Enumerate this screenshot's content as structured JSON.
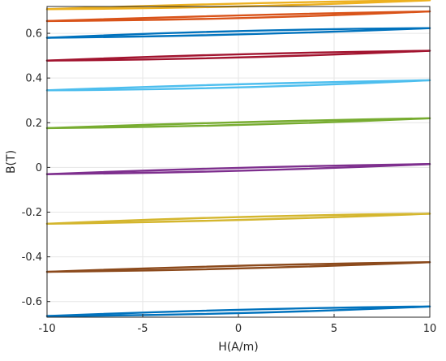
{
  "chart_data": {
    "type": "line",
    "title": "",
    "xlabel": "H(A/m)",
    "ylabel": "B(T)",
    "xlim": [
      -10,
      10
    ],
    "ylim": [
      -0.67,
      0.72
    ],
    "xticks": [
      -10,
      -5,
      0,
      5,
      10
    ],
    "xtick_labels": [
      "-10",
      "-5",
      "0",
      "5",
      "10"
    ],
    "yticks": [
      -0.6,
      -0.4,
      -0.2,
      0,
      0.2,
      0.4,
      0.6
    ],
    "ytick_labels": [
      "-0.6",
      "-0.4",
      "-0.2",
      "0",
      "0.2",
      "0.4",
      "0.6"
    ],
    "grid": true,
    "loops": [
      {
        "color": "#EDB120",
        "upper": [
          [
            -10,
            0.708
          ],
          [
            0,
            0.733
          ],
          [
            10,
            0.748
          ]
        ],
        "lower": [
          [
            -10,
            0.708
          ],
          [
            0,
            0.72
          ],
          [
            10,
            0.748
          ]
        ]
      },
      {
        "color": "#D95319",
        "upper": [
          [
            -10,
            0.655
          ],
          [
            0,
            0.68
          ],
          [
            10,
            0.698
          ]
        ],
        "lower": [
          [
            -10,
            0.655
          ],
          [
            0,
            0.668
          ],
          [
            10,
            0.698
          ]
        ]
      },
      {
        "color": "#0072BD",
        "upper": [
          [
            -10,
            0.58
          ],
          [
            0,
            0.61
          ],
          [
            10,
            0.623
          ]
        ],
        "lower": [
          [
            -10,
            0.58
          ],
          [
            0,
            0.595
          ],
          [
            10,
            0.623
          ]
        ]
      },
      {
        "color": "#A2142F",
        "upper": [
          [
            -10,
            0.478
          ],
          [
            0,
            0.506
          ],
          [
            10,
            0.522
          ]
        ],
        "lower": [
          [
            -10,
            0.478
          ],
          [
            0,
            0.492
          ],
          [
            10,
            0.522
          ]
        ]
      },
      {
        "color": "#4DBEEE",
        "upper": [
          [
            -10,
            0.345
          ],
          [
            0,
            0.372
          ],
          [
            10,
            0.39
          ]
        ],
        "lower": [
          [
            -10,
            0.345
          ],
          [
            0,
            0.358
          ],
          [
            10,
            0.39
          ]
        ]
      },
      {
        "color": "#77AC30",
        "upper": [
          [
            -10,
            0.176
          ],
          [
            0,
            0.202
          ],
          [
            10,
            0.22
          ]
        ],
        "lower": [
          [
            -10,
            0.176
          ],
          [
            0,
            0.19
          ],
          [
            10,
            0.22
          ]
        ]
      },
      {
        "color": "#7E2F8E",
        "upper": [
          [
            -10,
            -0.03
          ],
          [
            0,
            -0.002
          ],
          [
            10,
            0.015
          ]
        ],
        "lower": [
          [
            -10,
            -0.03
          ],
          [
            0,
            -0.015
          ],
          [
            10,
            0.015
          ]
        ]
      },
      {
        "color": "#D4B62E",
        "upper": [
          [
            -10,
            -0.252
          ],
          [
            0,
            -0.222
          ],
          [
            10,
            -0.207
          ]
        ],
        "lower": [
          [
            -10,
            -0.252
          ],
          [
            0,
            -0.235
          ],
          [
            10,
            -0.207
          ]
        ]
      },
      {
        "color": "#8C4A1C",
        "upper": [
          [
            -10,
            -0.467
          ],
          [
            0,
            -0.44
          ],
          [
            10,
            -0.424
          ]
        ],
        "lower": [
          [
            -10,
            -0.467
          ],
          [
            0,
            -0.452
          ],
          [
            10,
            -0.424
          ]
        ]
      },
      {
        "color": "#0072BD",
        "upper": [
          [
            -10,
            -0.665
          ],
          [
            0,
            -0.637
          ],
          [
            10,
            -0.622
          ]
        ],
        "lower": [
          [
            -10,
            -0.665
          ],
          [
            0,
            -0.652
          ],
          [
            10,
            -0.622
          ]
        ]
      }
    ]
  }
}
